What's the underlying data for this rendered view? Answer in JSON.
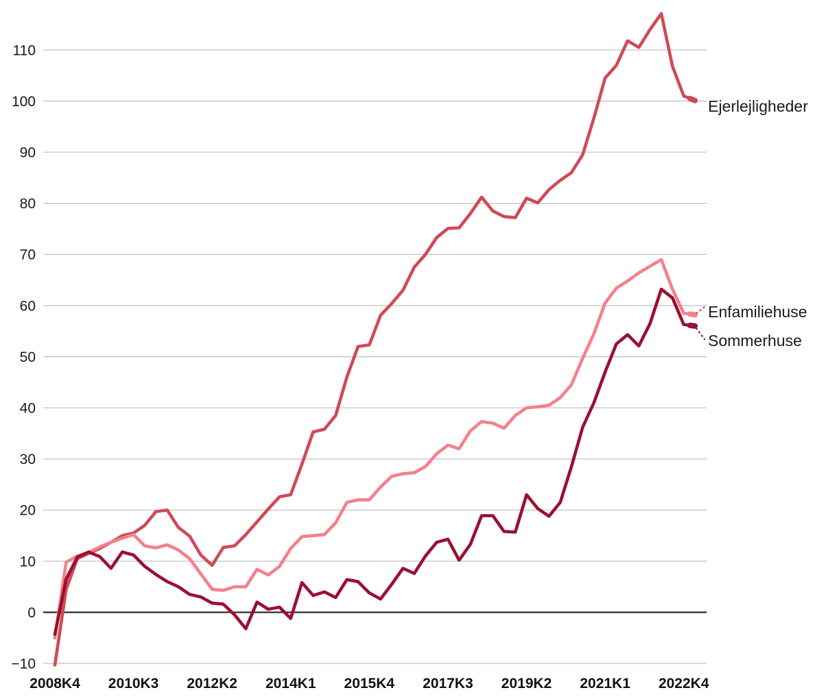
{
  "chart_data": {
    "type": "line",
    "title": "",
    "x_axis": {
      "num_points": 58,
      "first_point_period": "2008K4",
      "last_point_period": "2023K1",
      "tick_labels": [
        "2008K4",
        "2010K3",
        "2012K2",
        "2014K1",
        "2015K4",
        "2017K3",
        "2019K2",
        "2021K1",
        "2022K4"
      ],
      "tick_indices": [
        0,
        7,
        14,
        21,
        28,
        35,
        42,
        49,
        56
      ]
    },
    "y_axis": {
      "ticks": [
        -10,
        0,
        10,
        20,
        30,
        40,
        50,
        60,
        70,
        80,
        90,
        100,
        110
      ],
      "tick_labels": [
        "−10",
        "0",
        "10",
        "20",
        "30",
        "40",
        "50",
        "60",
        "70",
        "80",
        "90",
        "100",
        "110"
      ],
      "range_min": -10,
      "range_max": 118,
      "grid": "horizontal",
      "zero_line": true
    },
    "series": [
      {
        "name": "Ejerlejligheder",
        "color": "#CF4A56",
        "leader": false,
        "values": [
          -10.3,
          4.5,
          10.5,
          11.5,
          12.5,
          13.7,
          15.0,
          15.5,
          17.0,
          19.7,
          20.0,
          16.6,
          14.9,
          11.2,
          9.2,
          12.7,
          13.0,
          15.2,
          17.7,
          20.2,
          22.6,
          23.0,
          29.0,
          35.3,
          35.8,
          38.5,
          46.0,
          52.0,
          52.3,
          58.1,
          60.4,
          63.0,
          67.5,
          70.0,
          73.3,
          75.1,
          75.2,
          78.0,
          81.2,
          78.5,
          77.4,
          77.2,
          81.0,
          80.1,
          82.7,
          84.5,
          86.0,
          89.5,
          96.7,
          104.5,
          107.0,
          111.8,
          110.5,
          114.0,
          117.1,
          106.8,
          101.0,
          100.1
        ]
      },
      {
        "name": "Enfamiliehuse",
        "color": "#F5808A",
        "leader": true,
        "leader_color": "#D4505F",
        "values": [
          -5.0,
          9.8,
          11.0,
          11.7,
          12.8,
          13.7,
          14.5,
          15.2,
          13.0,
          12.6,
          13.2,
          12.2,
          10.5,
          7.5,
          4.5,
          4.3,
          5.0,
          5.0,
          8.4,
          7.3,
          9.0,
          12.5,
          14.8,
          15.0,
          15.2,
          17.5,
          21.5,
          22.0,
          22.0,
          24.5,
          26.6,
          27.1,
          27.3,
          28.5,
          31.0,
          32.7,
          32.0,
          35.5,
          37.3,
          37.0,
          36.0,
          38.5,
          40.0,
          40.2,
          40.5,
          42.0,
          44.5,
          49.7,
          54.5,
          60.5,
          63.4,
          64.8,
          66.4,
          67.7,
          69.0,
          63.2,
          58.5,
          58.2
        ]
      },
      {
        "name": "Sommerhuse",
        "color": "#9B1031",
        "leader": true,
        "leader_color": "#9B1031",
        "values": [
          -4.3,
          6.5,
          10.8,
          11.8,
          10.9,
          8.6,
          11.8,
          11.2,
          9.0,
          7.4,
          6.0,
          5.0,
          3.5,
          3.0,
          1.8,
          1.6,
          -0.5,
          -3.2,
          2.0,
          0.6,
          1.0,
          -1.2,
          5.8,
          3.3,
          4.0,
          2.9,
          6.4,
          6.0,
          3.8,
          2.6,
          5.5,
          8.6,
          7.6,
          11.0,
          13.7,
          14.3,
          10.2,
          13.3,
          18.9,
          18.9,
          15.8,
          15.7,
          23.0,
          20.3,
          18.8,
          21.5,
          28.5,
          36.2,
          41.0,
          47.0,
          52.5,
          54.3,
          52.1,
          56.5,
          63.2,
          61.5,
          56.3,
          56.0
        ]
      }
    ],
    "legend_position": "right-of-line-end"
  },
  "colors": {
    "background": "#FFFFFF",
    "gridline": "#C6C6C6",
    "zero_line": "#2B2B2B",
    "text": "#1A1A1A"
  }
}
